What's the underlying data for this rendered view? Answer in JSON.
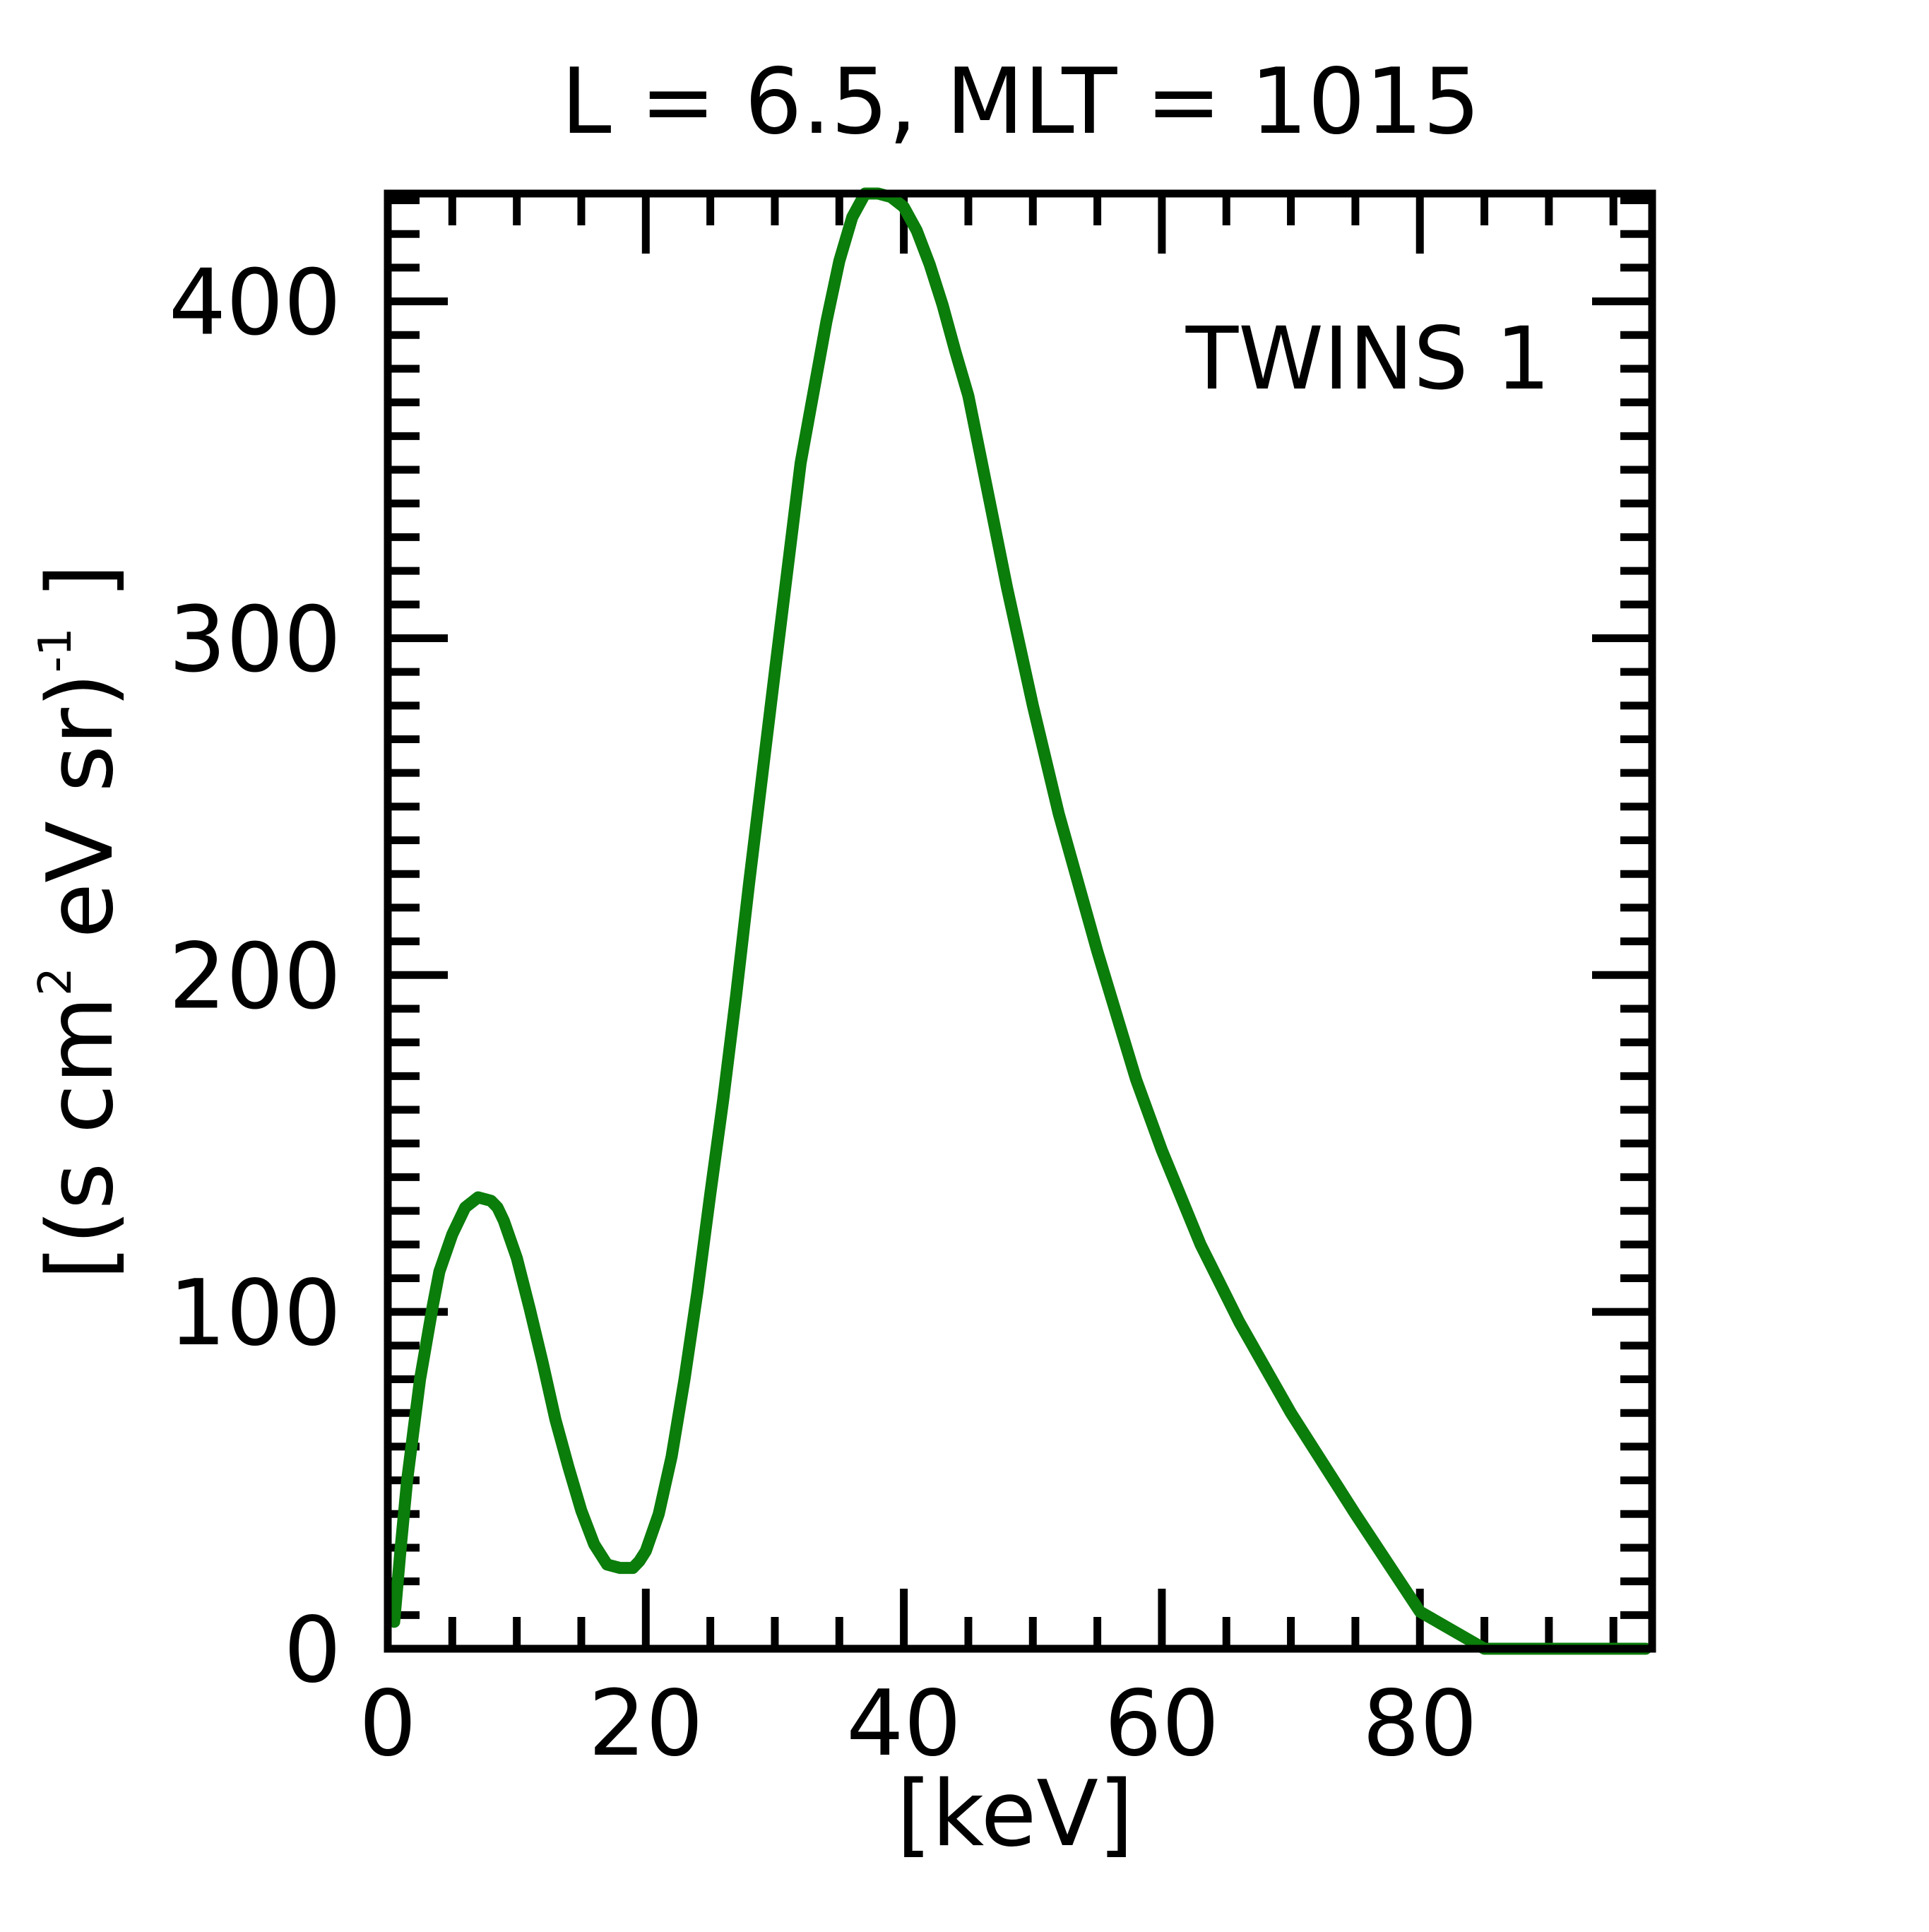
{
  "chart_data": {
    "type": "line",
    "title": "L =  6.5, MLT = 1015",
    "xlabel": "[keV]",
    "ylabel": {
      "base": "[(s cm",
      "sup1": "2",
      "mid": " eV sr)",
      "sup2": "-1",
      "end": " ]"
    },
    "xlim": [
      0,
      98
    ],
    "ylim": [
      0,
      432
    ],
    "x_ticks": [
      0,
      20,
      40,
      60,
      80
    ],
    "x_tick_labels": [
      "0",
      "20",
      "40",
      "60",
      "80"
    ],
    "x_minor_step": 5,
    "y_ticks": [
      0,
      100,
      200,
      300,
      400
    ],
    "y_tick_labels": [
      "0",
      "100",
      "200",
      "300",
      "400"
    ],
    "y_minor_step": 10,
    "grid": false,
    "legend": {
      "position": "top-right",
      "label": "TWINS 1"
    },
    "series": [
      {
        "name": "TWINS 1",
        "color": "#0a7d0a",
        "x": [
          0.5,
          1.0,
          1.5,
          2.0,
          2.5,
          3.0,
          3.5,
          4.0,
          5.0,
          6.0,
          7.0,
          8.0,
          8.5,
          9.0,
          10.0,
          11.0,
          12.0,
          13.0,
          14.0,
          15.0,
          16.0,
          17.0,
          18.0,
          19.0,
          19.5,
          20.0,
          21.0,
          22.0,
          23.0,
          24.0,
          25.0,
          26.0,
          27.0,
          28.0,
          30.0,
          32.0,
          34.0,
          35.0,
          36.0,
          37.0,
          38.0,
          39.0,
          40.0,
          41.0,
          42.0,
          43.0,
          44.0,
          45.0,
          46.0,
          48.0,
          50.0,
          52.0,
          55.0,
          58.0,
          60.0,
          63.0,
          66.0,
          70.0,
          75.0,
          80.0,
          85.0,
          90.0,
          95.0,
          97.5
        ],
        "y": [
          8,
          30,
          50,
          65,
          80,
          91,
          102,
          112,
          123,
          131,
          134,
          133,
          131,
          127,
          116,
          101,
          85,
          68,
          54,
          41,
          31,
          25,
          24,
          24,
          26,
          29,
          40,
          57,
          80,
          106,
          135,
          163,
          194,
          227,
          290,
          352,
          394,
          412,
          425,
          432,
          432,
          431,
          428,
          421,
          411,
          399,
          385,
          372,
          353,
          315,
          280,
          248,
          207,
          169,
          148,
          120,
          97,
          70,
          40,
          11,
          0,
          0,
          0,
          0
        ]
      }
    ]
  }
}
